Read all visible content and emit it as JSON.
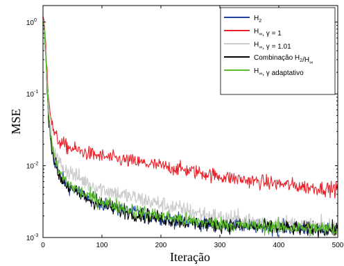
{
  "chart_data": {
    "type": "line",
    "xlabel": "Iteração",
    "ylabel": "MSE",
    "xlim": [
      0,
      500
    ],
    "ylim": [
      0.001,
      1.7
    ],
    "yscale": "log",
    "grid": false,
    "legend_position": "top-right",
    "x_ticks": [
      0,
      100,
      200,
      300,
      400,
      500
    ],
    "x_tick_labels": [
      "0",
      "100",
      "200",
      "300",
      "400",
      "500"
    ],
    "y_ticks": [
      1,
      0.1,
      0.01,
      0.001
    ],
    "y_tick_labels": [
      {
        "base": "10",
        "exp": "0"
      },
      {
        "base": "10",
        "exp": "-1"
      },
      {
        "base": "10",
        "exp": "-2"
      },
      {
        "base": "10",
        "exp": "-3"
      }
    ],
    "x": [
      0,
      2,
      5,
      8,
      12,
      16,
      20,
      25,
      30,
      40,
      50,
      60,
      80,
      100,
      130,
      160,
      200,
      250,
      300,
      350,
      400,
      450,
      500
    ],
    "series": [
      {
        "name": "H2",
        "label_parts": [
          {
            "t": "H"
          },
          {
            "sub": "2"
          }
        ],
        "color": "#1f3fa0",
        "noise": 0.05,
        "values": [
          1.0,
          0.9,
          0.3,
          0.08,
          0.03,
          0.017,
          0.0115,
          0.0085,
          0.007,
          0.0056,
          0.0048,
          0.0043,
          0.0035,
          0.003,
          0.0025,
          0.0022,
          0.0019,
          0.0016,
          0.0015,
          0.00143,
          0.00138,
          0.00134,
          0.0013
        ]
      },
      {
        "name": "H∞, γ = 1",
        "label_parts": [
          {
            "t": "H"
          },
          {
            "sub": "∞"
          },
          {
            "t": ", γ = 1"
          }
        ],
        "color": "#e8212a",
        "noise": 0.05,
        "values": [
          1.2,
          1.05,
          0.45,
          0.15,
          0.06,
          0.035,
          0.027,
          0.023,
          0.021,
          0.0185,
          0.0172,
          0.0163,
          0.0145,
          0.0135,
          0.0122,
          0.0112,
          0.0099,
          0.0085,
          0.0071,
          0.0062,
          0.0056,
          0.005,
          0.0047
        ]
      },
      {
        "name": "H∞, γ = 1.01",
        "label_parts": [
          {
            "t": "H"
          },
          {
            "sub": "∞"
          },
          {
            "t": ", γ = 1.01"
          }
        ],
        "color": "#cccccc",
        "noise": 0.06,
        "values": [
          1.05,
          0.95,
          0.35,
          0.1,
          0.04,
          0.022,
          0.015,
          0.012,
          0.0105,
          0.0088,
          0.0078,
          0.0068,
          0.0055,
          0.0048,
          0.004,
          0.0035,
          0.0029,
          0.0023,
          0.0019,
          0.0017,
          0.0016,
          0.00145,
          0.0014
        ]
      },
      {
        "name": "Combinação H2/H∞",
        "label_parts": [
          {
            "t": "Combinação H"
          },
          {
            "sub": "2"
          },
          {
            "t": "/H"
          },
          {
            "sub": "∞"
          }
        ],
        "color": "#000000",
        "noise": 0.05,
        "values": [
          1.0,
          0.85,
          0.28,
          0.075,
          0.028,
          0.0155,
          0.011,
          0.0082,
          0.0067,
          0.0053,
          0.0045,
          0.004,
          0.0033,
          0.0029,
          0.0024,
          0.0021,
          0.00185,
          0.0016,
          0.0015,
          0.00142,
          0.00137,
          0.00132,
          0.00128
        ]
      },
      {
        "name": "H∞, γ adaptativo",
        "label_parts": [
          {
            "t": "H"
          },
          {
            "sub": "∞"
          },
          {
            "t": ", γ adaptativo"
          }
        ],
        "color": "#5cbf2a",
        "noise": 0.05,
        "values": [
          1.0,
          0.88,
          0.3,
          0.08,
          0.03,
          0.017,
          0.012,
          0.0091,
          0.0075,
          0.006,
          0.0051,
          0.0045,
          0.0037,
          0.0032,
          0.0027,
          0.0023,
          0.002,
          0.0017,
          0.00155,
          0.00145,
          0.0014,
          0.00135,
          0.0013
        ]
      }
    ]
  }
}
